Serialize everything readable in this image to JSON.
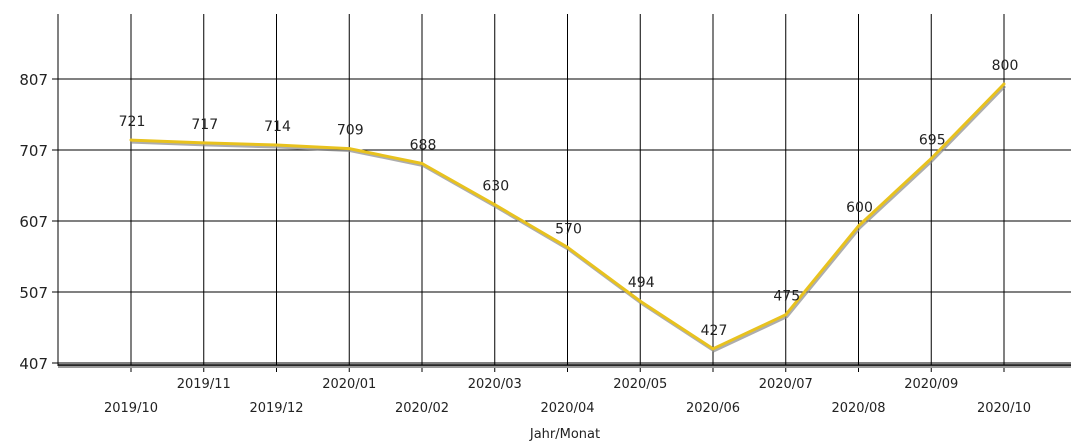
{
  "chart_data": {
    "type": "line",
    "title": "",
    "xlabel": "Jahr/Monat",
    "ylabel": "",
    "categories": [
      "2019/10",
      "2019/11",
      "2019/12",
      "2020/01",
      "2020/02",
      "2020/03",
      "2020/04",
      "2020/05",
      "2020/06",
      "2020/07",
      "2020/08",
      "2020/09",
      "2020/10"
    ],
    "series": [
      {
        "values": [
          721,
          717,
          714,
          709,
          688,
          630,
          570,
          494,
          427,
          475,
          600,
          695,
          800
        ]
      }
    ],
    "data_labels": [
      "721",
      "717",
      "714",
      "709",
      "688",
      "630",
      "570",
      "494",
      "427",
      "475",
      "600",
      "695",
      "800"
    ],
    "y_ticks": [
      407,
      507,
      607,
      707,
      807
    ],
    "y_tick_labels": [
      "407",
      "507",
      "607",
      "707",
      "807"
    ],
    "ylim": [
      407,
      900
    ],
    "grid": true,
    "legend": "none",
    "colors": {
      "line": "#e8c21e",
      "line_shadow": "#8a8a8a",
      "grid": "#000000",
      "axis": "#000000"
    }
  }
}
